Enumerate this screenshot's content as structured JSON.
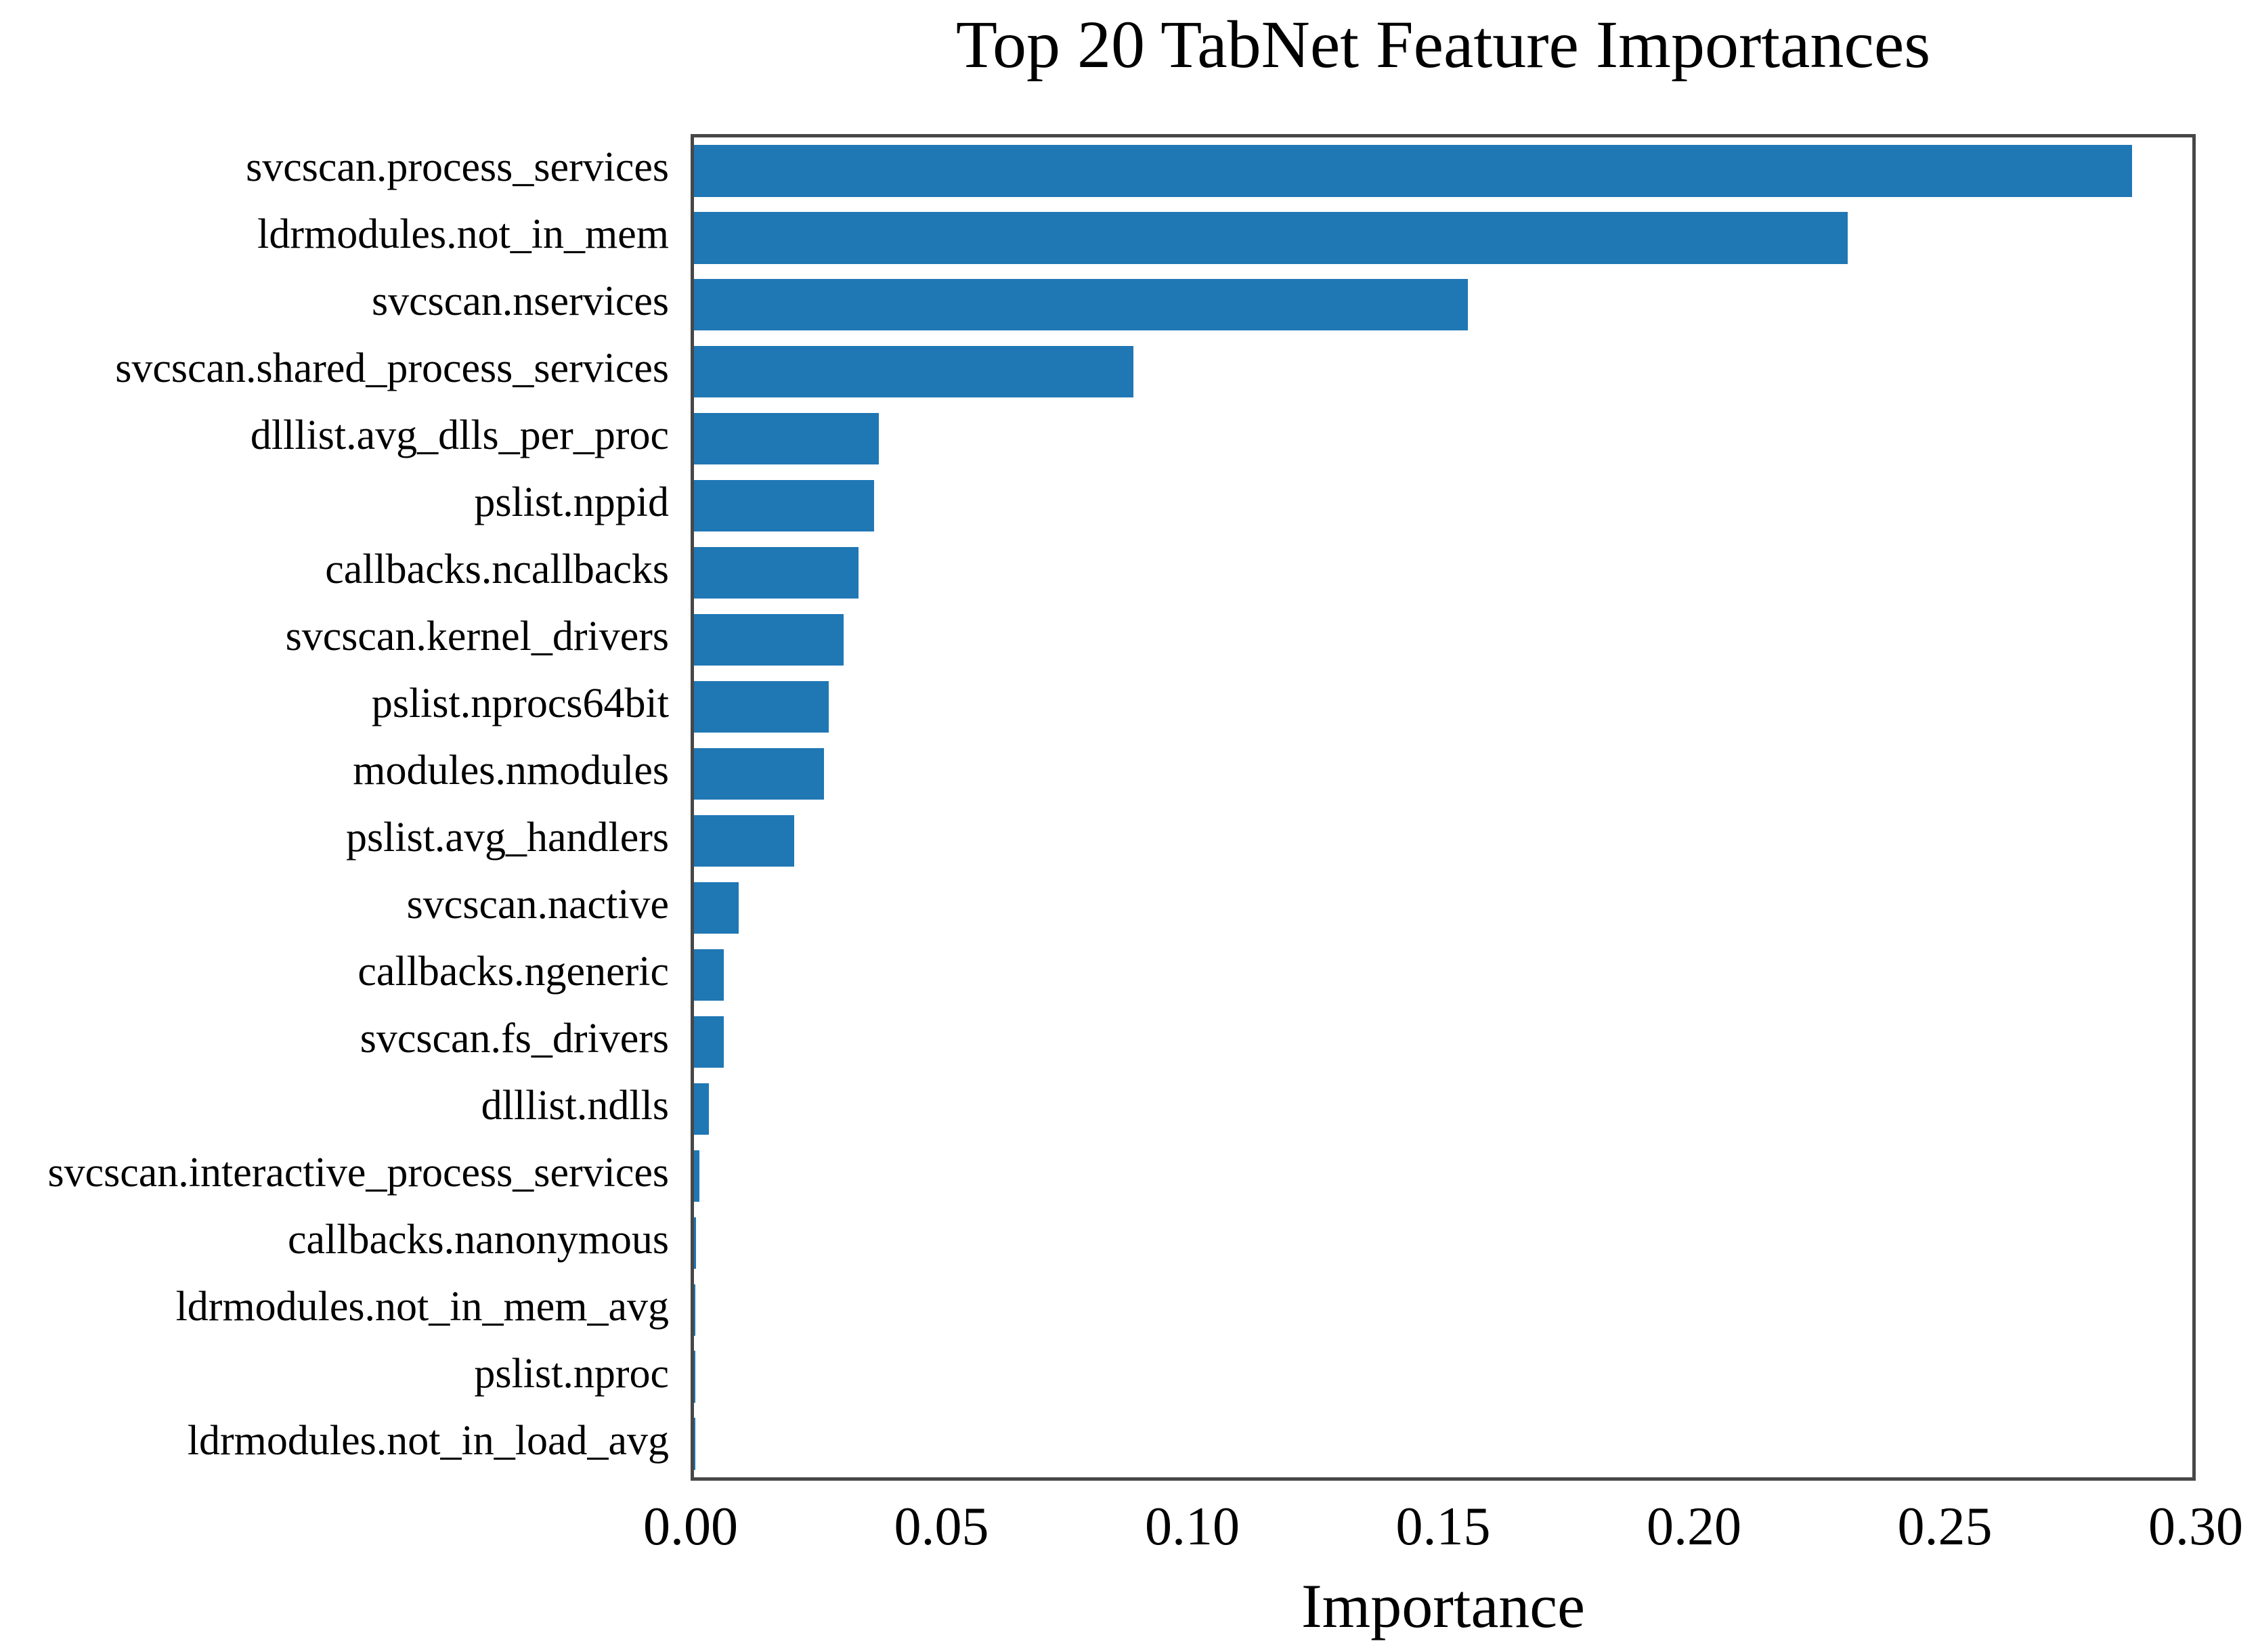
{
  "chart_data": {
    "type": "bar",
    "orientation": "horizontal",
    "title": "Top 20 TabNet Feature Importances",
    "xlabel": "Importance",
    "ylabel": "",
    "xlim": [
      0,
      0.3
    ],
    "xticks": [
      "0.00",
      "0.05",
      "0.10",
      "0.15",
      "0.20",
      "0.25",
      "0.30"
    ],
    "grid": false,
    "legend": "none",
    "bar_color": "#1f77b4",
    "frame_color": "#474747",
    "categories": [
      "svcscan.process_services",
      "ldrmodules.not_in_mem",
      "svcscan.nservices",
      "svcscan.shared_process_services",
      "dlllist.avg_dlls_per_proc",
      "pslist.nppid",
      "callbacks.ncallbacks",
      "svcscan.kernel_drivers",
      "pslist.nprocs64bit",
      "modules.nmodules",
      "pslist.avg_handlers",
      "svcscan.nactive",
      "callbacks.ngeneric",
      "svcscan.fs_drivers",
      "dlllist.ndlls",
      "svcscan.interactive_process_services",
      "callbacks.nanonymous",
      "ldrmodules.not_in_mem_avg",
      "pslist.nproc",
      "ldrmodules.not_in_load_avg"
    ],
    "values": [
      0.288,
      0.231,
      0.155,
      0.088,
      0.037,
      0.036,
      0.033,
      0.03,
      0.027,
      0.026,
      0.02,
      0.009,
      0.006,
      0.006,
      0.003,
      0.0011,
      0.0004,
      0.0003,
      0.0003,
      0.0003
    ]
  }
}
